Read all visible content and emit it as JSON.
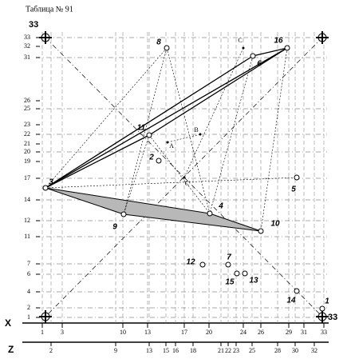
{
  "title": "Таблица № 91",
  "corner_labels": [
    "33",
    "33"
  ],
  "axis_labels": {
    "x": "X",
    "z": "Z"
  },
  "y_scale": [
    "33",
    "32",
    "31",
    "26",
    "25",
    "23",
    "22",
    "21",
    "20",
    "19",
    "17",
    "14",
    "12",
    "11",
    "7",
    "6",
    "4",
    "2",
    "1"
  ],
  "x_scale": [
    "1",
    "3",
    "10",
    "13",
    "17",
    "20",
    "24",
    "26",
    "29",
    "31",
    "33"
  ],
  "z_scale": [
    "2",
    "9",
    "13",
    "15",
    "16",
    "18",
    "21",
    "22",
    "23",
    "25",
    "28",
    "30",
    "32"
  ],
  "points": [
    {
      "label": "1"
    },
    {
      "label": "2"
    },
    {
      "label": "3"
    },
    {
      "label": "4"
    },
    {
      "label": "5"
    },
    {
      "label": "6"
    },
    {
      "label": "7"
    },
    {
      "label": "8"
    },
    {
      "label": "9"
    },
    {
      "label": "10"
    },
    {
      "label": "11"
    },
    {
      "label": "12"
    },
    {
      "label": "13"
    },
    {
      "label": "14"
    },
    {
      "label": "15"
    },
    {
      "label": "16"
    }
  ],
  "aux_points": [
    {
      "label": "A"
    },
    {
      "label": "B"
    },
    {
      "label": "C"
    },
    {
      "label": "C'"
    }
  ]
}
